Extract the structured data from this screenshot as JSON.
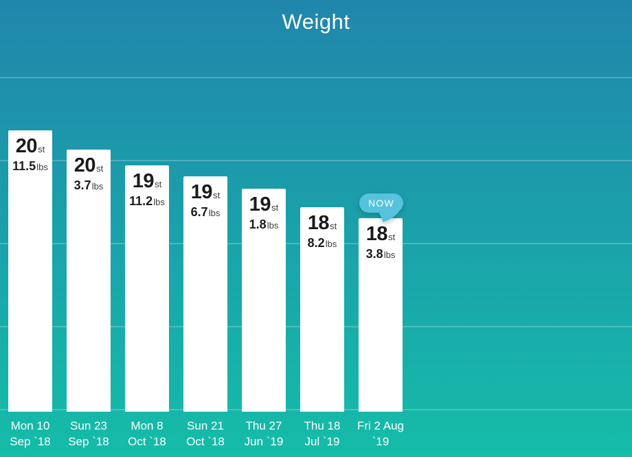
{
  "title": "Weight",
  "now_label": "NOW",
  "units": {
    "stones": "st",
    "pounds": "lbs"
  },
  "colors": {
    "bg_top": "#2086ac",
    "bg_bottom": "#15bca8",
    "bar": "#ffffff",
    "value_text": "#1b1b1d",
    "unit_text": "#3a3a3c",
    "axis_text": "#ffffff",
    "now_bubble": "#55c3dd",
    "gridline": "rgba(255,255,255,0.22)"
  },
  "chart_data": {
    "type": "bar",
    "title": "Weight",
    "xlabel": "",
    "ylabel": "",
    "unit_system": "stones_pounds",
    "grid": "horizontal",
    "legend_position": "none",
    "ylim_total_lbs": [
      177,
      292
    ],
    "categories": [
      "Mon 10 Sep `18",
      "Sun 23 Sep `18",
      "Mon 8 Oct `18",
      "Sun 21 Oct `18",
      "Thu 27 Jun `19",
      "Thu 18 Jul `19",
      "Fri 2 Aug `19"
    ],
    "points": [
      {
        "date_line1": "Mon 10",
        "date_line2": "Sep `18",
        "st": 20,
        "lbs": 11.5,
        "total_lbs": 291.5,
        "now": false
      },
      {
        "date_line1": "Sun 23",
        "date_line2": "Sep `18",
        "st": 20,
        "lbs": 3.7,
        "total_lbs": 283.7,
        "now": false
      },
      {
        "date_line1": "Mon 8",
        "date_line2": "Oct `18",
        "st": 19,
        "lbs": 11.2,
        "total_lbs": 277.2,
        "now": false
      },
      {
        "date_line1": "Sun 21",
        "date_line2": "Oct `18",
        "st": 19,
        "lbs": 6.7,
        "total_lbs": 272.7,
        "now": false
      },
      {
        "date_line1": "Thu 27",
        "date_line2": "Jun `19",
        "st": 19,
        "lbs": 1.8,
        "total_lbs": 267.8,
        "now": false
      },
      {
        "date_line1": "Thu 18",
        "date_line2": "Jul `19",
        "st": 18,
        "lbs": 8.2,
        "total_lbs": 260.2,
        "now": false
      },
      {
        "date_line1": "Fri 2 Aug",
        "date_line2": "`19",
        "st": 18,
        "lbs": 3.8,
        "total_lbs": 255.8,
        "now": true
      }
    ]
  }
}
